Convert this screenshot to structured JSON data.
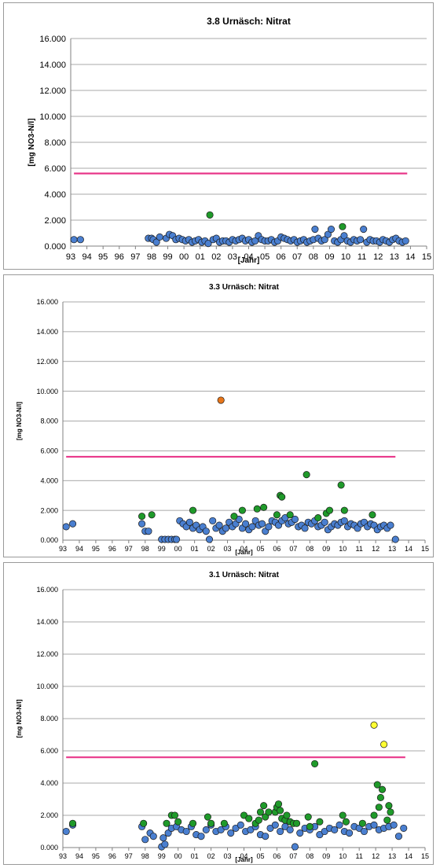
{
  "colors": {
    "blue": "#4a7fd0",
    "green": "#1f9a2a",
    "orange": "#e8761a",
    "yellow": "#ffff33",
    "limit_line": "#e8388a",
    "grid": "#8c8c8c",
    "marker_edge": "#1a1a1a",
    "panel_border": "#9a9a9a"
  },
  "chart_data": [
    {
      "type": "scatter",
      "title": "3.8 Urnäsch: Nitrat",
      "xlabel": "[Jahr]",
      "ylabel": "[mg NO3-N/l]",
      "xlim": [
        93,
        115
      ],
      "ylim": [
        0,
        16
      ],
      "x_ticks": [
        "93",
        "94",
        "95",
        "96",
        "97",
        "98",
        "99",
        "00",
        "01",
        "02",
        "03",
        "04",
        "05",
        "06",
        "07",
        "08",
        "09",
        "10",
        "11",
        "12",
        "13",
        "14",
        "15"
      ],
      "y_ticks": [
        "0.000",
        "2.000",
        "4.000",
        "6.000",
        "8.000",
        "10.000",
        "12.000",
        "14.000",
        "16.000"
      ],
      "grid": true,
      "limit_line": {
        "y": 5.6,
        "x_start": 93.2,
        "x_end": 113.8
      },
      "series": [
        {
          "color": "blue",
          "x": [
            93.2,
            93.6,
            97.8,
            98.0,
            98.1,
            98.3,
            98.5,
            98.9,
            99.1,
            99.3,
            99.5,
            99.7,
            99.9,
            100.1,
            100.3,
            100.5,
            100.7,
            100.9,
            101.1,
            101.3,
            101.5,
            101.8,
            102.0,
            102.2,
            102.4,
            102.6,
            102.8,
            103.0,
            103.2,
            103.4,
            103.6,
            103.8,
            104.0,
            104.2,
            104.4,
            104.6,
            104.8,
            105.0,
            105.2,
            105.4,
            105.6,
            105.8,
            106.0,
            106.2,
            106.4,
            106.6,
            106.8,
            107.0,
            107.2,
            107.4,
            107.6,
            107.8,
            108.0,
            108.1,
            108.3,
            108.5,
            108.7,
            108.9,
            109.1,
            109.3,
            109.5,
            109.7,
            109.9,
            110.1,
            110.3,
            110.5,
            110.7,
            110.9,
            111.1,
            111.3,
            111.5,
            111.7,
            111.9,
            112.1,
            112.3,
            112.5,
            112.7,
            112.9,
            113.1,
            113.3,
            113.5,
            113.7
          ],
          "y": [
            0.5,
            0.5,
            0.6,
            0.6,
            0.5,
            0.3,
            0.7,
            0.6,
            0.9,
            0.8,
            0.5,
            0.6,
            0.5,
            0.4,
            0.5,
            0.3,
            0.4,
            0.5,
            0.3,
            0.4,
            0.2,
            0.5,
            0.6,
            0.3,
            0.4,
            0.4,
            0.3,
            0.5,
            0.4,
            0.5,
            0.6,
            0.4,
            0.5,
            0.3,
            0.4,
            0.8,
            0.5,
            0.4,
            0.4,
            0.5,
            0.3,
            0.4,
            0.7,
            0.6,
            0.5,
            0.4,
            0.5,
            0.3,
            0.4,
            0.5,
            0.3,
            0.4,
            0.5,
            1.3,
            0.6,
            0.4,
            0.5,
            0.9,
            1.3,
            0.4,
            0.3,
            0.5,
            0.8,
            0.4,
            0.3,
            0.5,
            0.4,
            0.5,
            1.3,
            0.3,
            0.5,
            0.4,
            0.4,
            0.3,
            0.5,
            0.4,
            0.3,
            0.5,
            0.6,
            0.4,
            0.3,
            0.4
          ]
        },
        {
          "color": "green",
          "x": [
            101.6,
            109.8
          ],
          "y": [
            2.4,
            1.5
          ]
        }
      ]
    },
    {
      "type": "scatter",
      "title": "3.3 Urnäsch: Nitrat",
      "xlabel": "[Jahr]",
      "ylabel": "[mg NO3-N/l]",
      "xlim": [
        93,
        115
      ],
      "ylim": [
        0,
        16
      ],
      "x_ticks": [
        "93",
        "94",
        "95",
        "96",
        "97",
        "98",
        "99",
        "00",
        "01",
        "02",
        "03",
        "04",
        "05",
        "06",
        "07",
        "08",
        "09",
        "10",
        "11",
        "12",
        "13",
        "14",
        "15"
      ],
      "y_ticks": [
        "0.000",
        "2.000",
        "4.000",
        "6.000",
        "8.000",
        "10.000",
        "12.000",
        "14.000",
        "16.000"
      ],
      "grid": true,
      "limit_line": {
        "y": 5.6,
        "x_start": 93.2,
        "x_end": 113.2
      },
      "series": [
        {
          "color": "blue",
          "x": [
            93.2,
            93.6,
            97.8,
            98.0,
            98.2,
            99.0,
            99.2,
            99.4,
            99.6,
            99.8,
            99.9,
            100.1,
            100.3,
            100.5,
            100.7,
            100.9,
            101.1,
            101.3,
            101.5,
            101.7,
            101.9,
            102.1,
            102.3,
            102.5,
            102.7,
            102.9,
            103.1,
            103.3,
            103.5,
            103.7,
            103.9,
            104.1,
            104.3,
            104.5,
            104.7,
            104.9,
            105.1,
            105.3,
            105.5,
            105.7,
            105.9,
            106.1,
            106.3,
            106.5,
            106.7,
            106.9,
            107.1,
            107.3,
            107.5,
            107.7,
            107.9,
            108.1,
            108.3,
            108.5,
            108.7,
            108.9,
            109.1,
            109.3,
            109.5,
            109.7,
            109.9,
            110.1,
            110.3,
            110.5,
            110.7,
            110.9,
            111.1,
            111.3,
            111.5,
            111.7,
            111.9,
            112.1,
            112.3,
            112.5,
            112.7,
            112.9,
            113.2
          ],
          "y": [
            0.9,
            1.1,
            1.1,
            0.6,
            0.6,
            0.05,
            0.05,
            0.05,
            0.05,
            0.05,
            0.05,
            1.3,
            1.1,
            0.9,
            1.2,
            0.8,
            1.0,
            0.7,
            0.9,
            0.6,
            0.05,
            1.3,
            0.8,
            1.0,
            0.6,
            0.8,
            1.2,
            0.9,
            1.1,
            1.4,
            0.8,
            1.1,
            0.7,
            0.9,
            1.3,
            1.0,
            1.1,
            0.6,
            0.9,
            1.3,
            1.2,
            1.0,
            1.3,
            1.5,
            1.1,
            1.2,
            1.4,
            0.9,
            1.0,
            0.8,
            1.2,
            1.1,
            1.3,
            0.9,
            1.0,
            1.2,
            0.7,
            0.9,
            1.1,
            1.0,
            1.2,
            1.3,
            0.9,
            1.1,
            1.0,
            0.8,
            1.1,
            1.2,
            0.9,
            1.1,
            1.0,
            0.7,
            0.9,
            1.0,
            0.8,
            1.0,
            0.05
          ]
        },
        {
          "color": "green",
          "x": [
            97.8,
            98.4,
            100.9,
            103.4,
            103.9,
            104.8,
            105.2,
            106.0,
            106.2,
            106.3,
            106.8,
            107.8,
            108.5,
            109.0,
            109.2,
            109.9,
            110.1,
            111.8
          ],
          "y": [
            1.6,
            1.7,
            2.0,
            1.6,
            2.0,
            2.1,
            2.2,
            1.7,
            3.0,
            2.9,
            1.7,
            4.4,
            1.5,
            1.8,
            2.0,
            3.7,
            2.0,
            1.7
          ]
        },
        {
          "color": "orange",
          "x": [
            102.6
          ],
          "y": [
            9.4
          ]
        }
      ]
    },
    {
      "type": "scatter",
      "title": "3.1 Urnäsch: Nitrat",
      "xlabel": "[Jahr]",
      "ylabel": "[mg NO3-N/l]",
      "xlim": [
        93,
        115
      ],
      "ylim": [
        0,
        16
      ],
      "x_ticks": [
        "93",
        "94",
        "95",
        "96",
        "97",
        "98",
        "99",
        "00",
        "01",
        "02",
        "03",
        "04",
        "05",
        "06",
        "07",
        "08",
        "09",
        "10",
        "11",
        "12",
        "13",
        "14",
        "15"
      ],
      "y_ticks": [
        "0.000",
        "2.000",
        "4.000",
        "6.000",
        "8.000",
        "10.000",
        "12.000",
        "14.000",
        "16.000"
      ],
      "grid": true,
      "limit_line": {
        "y": 5.6,
        "x_start": 93.2,
        "x_end": 113.8
      },
      "series": [
        {
          "color": "blue",
          "x": [
            93.2,
            93.6,
            97.8,
            98.0,
            98.3,
            98.5,
            99.0,
            99.1,
            99.2,
            99.4,
            99.6,
            99.9,
            100.2,
            100.5,
            100.8,
            101.1,
            101.4,
            101.7,
            102.0,
            102.3,
            102.6,
            102.9,
            103.2,
            103.5,
            103.8,
            104.1,
            104.4,
            104.7,
            105.0,
            105.3,
            105.6,
            105.9,
            106.2,
            106.5,
            106.8,
            107.1,
            107.4,
            107.7,
            108.0,
            108.3,
            108.6,
            108.9,
            109.2,
            109.5,
            109.8,
            110.1,
            110.4,
            110.7,
            111.0,
            111.3,
            111.6,
            111.9,
            112.2,
            112.5,
            112.8,
            113.1,
            113.4,
            113.7
          ],
          "y": [
            1.0,
            1.4,
            1.3,
            0.5,
            0.9,
            0.7,
            0.05,
            0.6,
            0.2,
            0.9,
            1.2,
            1.3,
            1.1,
            1.0,
            1.3,
            0.8,
            0.7,
            1.1,
            1.4,
            1.0,
            1.1,
            1.3,
            0.9,
            1.2,
            1.4,
            1.0,
            1.1,
            1.3,
            0.8,
            0.7,
            1.2,
            1.4,
            1.0,
            1.3,
            1.1,
            0.05,
            0.9,
            1.2,
            1.1,
            1.3,
            0.8,
            1.0,
            1.2,
            1.1,
            1.4,
            1.0,
            0.9,
            1.3,
            1.2,
            1.0,
            1.3,
            1.4,
            1.1,
            1.2,
            1.3,
            1.4,
            0.7,
            1.2
          ]
        },
        {
          "color": "green",
          "x": [
            93.6,
            97.9,
            99.3,
            99.6,
            99.8,
            100.0,
            100.9,
            101.8,
            102.0,
            102.8,
            104.0,
            104.3,
            104.7,
            104.9,
            105.0,
            105.2,
            105.3,
            105.5,
            105.9,
            106.0,
            106.1,
            106.2,
            106.3,
            106.5,
            106.6,
            106.8,
            107.0,
            107.2,
            107.9,
            108.0,
            108.3,
            108.6,
            110.0,
            110.2,
            111.2,
            111.9,
            112.1,
            112.2,
            112.3,
            112.4,
            112.7,
            112.8,
            112.9
          ],
          "y": [
            1.5,
            1.5,
            1.5,
            2.0,
            2.0,
            1.6,
            1.5,
            1.9,
            1.5,
            1.5,
            2.0,
            1.8,
            1.5,
            1.7,
            2.2,
            2.6,
            1.9,
            2.2,
            2.2,
            2.5,
            2.7,
            2.3,
            1.8,
            1.7,
            2.0,
            1.6,
            1.5,
            1.5,
            1.9,
            1.3,
            5.2,
            1.6,
            2.0,
            1.6,
            1.5,
            2.0,
            3.9,
            2.5,
            3.1,
            3.6,
            1.7,
            2.6,
            2.2
          ]
        },
        {
          "color": "yellow",
          "x": [
            111.9,
            112.5
          ],
          "y": [
            7.6,
            6.4
          ]
        }
      ]
    }
  ]
}
